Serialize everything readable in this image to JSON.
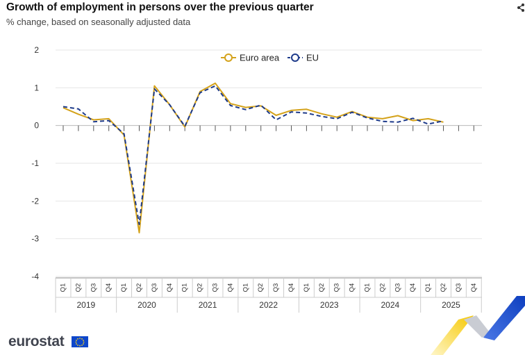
{
  "header": {
    "title": "Growth of employment in persons over the previous quarter",
    "subtitle": "% change, based on seasonally adjusted data"
  },
  "brand": {
    "logo_text": "eurostat"
  },
  "colors": {
    "euro_area": "#d4a21a",
    "eu": "#1d3a8a",
    "grid": "#e6e6e6",
    "axis_text": "#333333"
  },
  "chart_data": {
    "type": "line",
    "ylim": [
      -4,
      2
    ],
    "y_ticks": [
      "2",
      "1",
      "0",
      "-1",
      "-2",
      "-3",
      "-4"
    ],
    "legend_position": "top-center",
    "quarters": [
      "Q1",
      "Q2",
      "Q3",
      "Q4",
      "Q1",
      "Q2",
      "Q3",
      "Q4",
      "Q1",
      "Q2",
      "Q3",
      "Q4",
      "Q1",
      "Q2",
      "Q3",
      "Q4",
      "Q1",
      "Q2",
      "Q3",
      "Q4",
      "Q1",
      "Q2",
      "Q3",
      "Q4",
      "Q1",
      "Q2",
      "Q3",
      "Q4"
    ],
    "years": [
      "2019",
      "2020",
      "2021",
      "2022",
      "2023",
      "2024",
      "2025"
    ],
    "series": [
      {
        "name": "Euro area",
        "style": "solid",
        "values": [
          0.47,
          0.3,
          0.15,
          0.18,
          -0.25,
          -2.84,
          1.05,
          0.55,
          -0.04,
          0.9,
          1.12,
          0.58,
          0.48,
          0.52,
          0.27,
          0.4,
          0.43,
          0.31,
          0.22,
          0.37,
          0.22,
          0.18,
          0.26,
          0.13,
          0.18,
          0.09,
          null,
          null
        ]
      },
      {
        "name": "EU",
        "style": "dashed",
        "values": [
          0.5,
          0.44,
          0.1,
          0.13,
          -0.22,
          -2.62,
          0.97,
          0.55,
          -0.02,
          0.87,
          1.05,
          0.53,
          0.42,
          0.54,
          0.15,
          0.36,
          0.33,
          0.24,
          0.18,
          0.35,
          0.2,
          0.11,
          0.09,
          0.19,
          0.04,
          0.12,
          null,
          null
        ]
      }
    ]
  }
}
